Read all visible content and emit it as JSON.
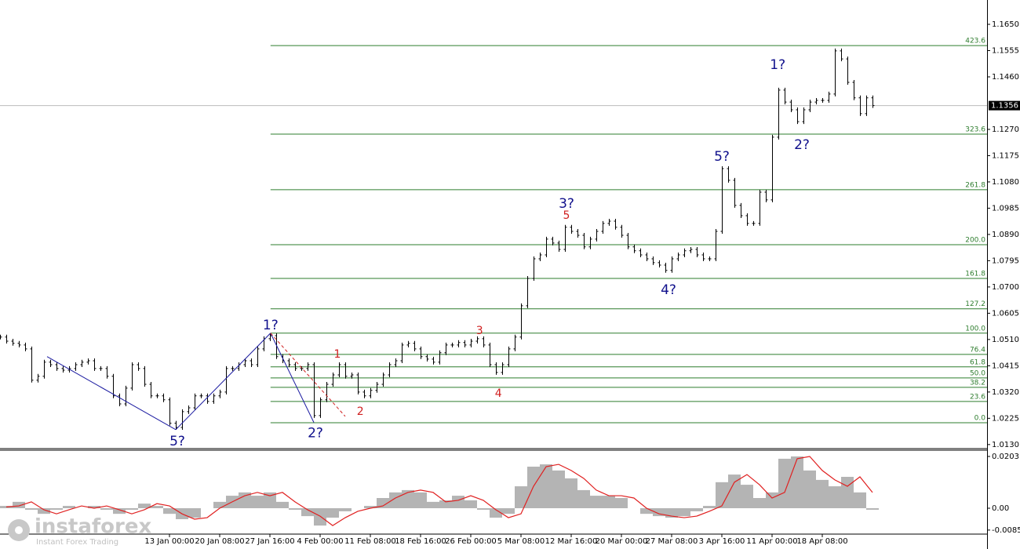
{
  "chart_data": [
    {
      "type": "ohlc",
      "values": [
        1.0519,
        1.0504,
        1.0496,
        1.049,
        1.0476,
        1.0363,
        1.0377,
        1.0428,
        1.0419,
        1.0405,
        1.0399,
        1.0405,
        1.0419,
        1.0428,
        1.0433,
        1.0405,
        1.0405,
        1.0377,
        1.0306,
        1.0277,
        1.0334,
        1.0419,
        1.0405,
        1.0348,
        1.0306,
        1.0306,
        1.0292,
        1.0207,
        1.0192,
        1.0249,
        1.0263,
        1.0306,
        1.0306,
        1.0286,
        1.0306,
        1.032,
        1.0405,
        1.0405,
        1.0419,
        1.0433,
        1.0419,
        1.0476,
        1.0513,
        1.0524,
        1.0448,
        1.0433,
        1.0419,
        1.0405,
        1.0405,
        1.0419,
        1.0235,
        1.0292,
        1.0348,
        1.0382,
        1.0419,
        1.0377,
        1.0382,
        1.032,
        1.0306,
        1.0326,
        1.0348,
        1.0382,
        1.0419,
        1.0433,
        1.049,
        1.0496,
        1.0476,
        1.0448,
        1.0439,
        1.0428,
        1.0462,
        1.049,
        1.049,
        1.0499,
        1.049,
        1.0504,
        1.0513,
        1.049,
        1.0419,
        1.0391,
        1.0419,
        1.0476,
        1.0519,
        1.0632,
        1.0731,
        1.0802,
        1.0816,
        1.0873,
        1.0859,
        1.0836,
        1.0916,
        1.0901,
        1.0887,
        1.0845,
        1.0873,
        1.0901,
        1.093,
        1.0938,
        1.0916,
        1.0887,
        1.0845,
        1.0831,
        1.0816,
        1.0802,
        1.0788,
        1.0779,
        1.076,
        1.0802,
        1.0816,
        1.0831,
        1.0836,
        1.0816,
        1.0802,
        1.0802,
        1.0901,
        1.1128,
        1.1086,
        1.0995,
        1.0958,
        1.093,
        1.093,
        1.1043,
        1.1015,
        1.1242,
        1.1412,
        1.1369,
        1.1341,
        1.1298,
        1.1341,
        1.1369,
        1.1375,
        1.1375,
        1.1398,
        1.1554,
        1.1525,
        1.144,
        1.1384,
        1.1327,
        1.1384,
        1.1356
      ],
      "color": "#000000",
      "xlim": [
        0,
        157.25
      ],
      "xticks": [
        {
          "value": 27,
          "label": "13 Jan 00:00"
        },
        {
          "value": 35,
          "label": "20 Jan 08:00"
        },
        {
          "value": 43,
          "label": "27 Jan 16:00"
        },
        {
          "value": 51,
          "label": "4 Feb 00:00"
        },
        {
          "value": 59,
          "label": "11 Feb 08:00"
        },
        {
          "value": 67,
          "label": "18 Feb 16:00"
        },
        {
          "value": 75,
          "label": "26 Feb 00:00"
        },
        {
          "value": 83,
          "label": "5 Mar 08:00"
        },
        {
          "value": 91,
          "label": "12 Mar 16:00"
        },
        {
          "value": 99,
          "label": "20 Mar 00:00"
        },
        {
          "value": 107,
          "label": "27 Mar 08:00"
        },
        {
          "value": 115,
          "label": "3 Apr 16:00"
        },
        {
          "value": 123,
          "label": "11 Apr 00:00"
        },
        {
          "value": 131,
          "label": "18 Apr 08:00"
        }
      ],
      "ylim": [
        1.0121,
        1.1738
      ],
      "yticks": [
        {
          "value": 1.165,
          "label": "1.1650"
        },
        1.1555,
        {
          "value": 1.146,
          "label": "1.1460"
        },
        {
          "value": 1.127,
          "label": "1.1270"
        },
        1.1175,
        {
          "value": 1.108,
          "label": "1.1080"
        },
        1.0985,
        {
          "value": 1.089,
          "label": "1.0890"
        },
        1.0795,
        {
          "value": 1.07,
          "label": "1.0700"
        },
        1.0605,
        {
          "value": 1.051,
          "label": "1.0510"
        },
        1.0415,
        {
          "value": 1.032,
          "label": "1.0320"
        },
        1.0225,
        {
          "value": 1.013,
          "label": "1.0130"
        }
      ],
      "last_price": 1.1356,
      "fib_color": "#2e7d2e",
      "fib_start": 43.1,
      "fib_levels": [
        {
          "label": "423.6",
          "price": 1.1573
        },
        {
          "label": "323.6",
          "price": 1.1253
        },
        {
          "label": "261.8",
          "price": 1.1052
        },
        {
          "label": "200.0",
          "price": 1.0853
        },
        {
          "label": "161.8",
          "price": 1.0731
        },
        {
          "label": "127.2",
          "price": 1.0621
        },
        {
          "label": "100.0",
          "price": 1.0533
        },
        {
          "label": "76.4",
          "price": 1.0456
        },
        {
          "label": "61.8",
          "price": 1.0411
        },
        {
          "label": "50.0",
          "price": 1.0371
        },
        {
          "label": "38.2",
          "price": 1.0337
        },
        {
          "label": "23.6",
          "price": 1.0286
        },
        {
          "label": "0.0",
          "price": 1.0209
        }
      ],
      "wave_lines": [
        {
          "x": [
            7.5,
            28
          ],
          "y": [
            1.0448,
            1.0184
          ],
          "color": "#1a1aa0",
          "dashed": false
        },
        {
          "x": [
            28,
            43.1
          ],
          "y": [
            1.0184,
            1.0533
          ],
          "color": "#1a1aa0",
          "dashed": false
        },
        {
          "x": [
            43.1,
            50
          ],
          "y": [
            1.0533,
            1.021
          ],
          "color": "#1a1aa0",
          "dashed": false
        },
        {
          "x": [
            43.1,
            55
          ],
          "y": [
            1.0533,
            1.0232
          ],
          "color": "#d02020",
          "dashed": true
        }
      ],
      "annotations": [
        {
          "text": "1?",
          "x": 43.1,
          "y": 1.0561,
          "color": "#10108c"
        },
        {
          "text": "5?",
          "x": 28.25,
          "y": 1.0141,
          "color": "#10108c"
        },
        {
          "text": "2?",
          "x": 50.25,
          "y": 1.017,
          "color": "#10108c"
        },
        {
          "text": "1",
          "x": 53.75,
          "y": 1.0456,
          "color": "#d02020"
        },
        {
          "text": "2",
          "x": 57.4,
          "y": 1.0249,
          "color": "#d02020"
        },
        {
          "text": "3",
          "x": 76.4,
          "y": 1.0541,
          "color": "#d02020"
        },
        {
          "text": "4",
          "x": 79.4,
          "y": 1.0314,
          "color": "#d02020"
        },
        {
          "text": "3?",
          "x": 90.25,
          "y": 1.1001,
          "color": "#10108c"
        },
        {
          "text": "5",
          "x": 90.25,
          "y": 1.0958,
          "color": "#d02020"
        },
        {
          "text": "4?",
          "x": 106.5,
          "y": 1.0689,
          "color": "#10108c"
        },
        {
          "text": "5?",
          "x": 115,
          "y": 1.1171,
          "color": "#10108c"
        },
        {
          "text": "1?",
          "x": 123.9,
          "y": 1.1503,
          "color": "#10108c"
        },
        {
          "text": "2?",
          "x": 127.75,
          "y": 1.1213,
          "color": "#10108c"
        }
      ]
    },
    {
      "type": "oscillator",
      "xlim": [
        0,
        78.625
      ],
      "ylim": [
        -0.00984,
        0.02245
      ],
      "yticks": [
        0.0203,
        {
          "value": 0,
          "label": "0.00"
        },
        -0.00857
      ],
      "series": [
        {
          "color": "#b4b4b4",
          "style": "histogram",
          "values": [
            0.0009,
            0.0025,
            -0.0006,
            -0.0022,
            -0.0006,
            0.0009,
            0,
            0.0009,
            -0.0006,
            -0.0022,
            -0.0006,
            0.0018,
            0.0009,
            -0.0022,
            -0.0043,
            -0.0037,
            0,
            0.0025,
            0.0049,
            0.0062,
            0.0049,
            0.0062,
            0.0025,
            -0.0006,
            -0.0031,
            -0.0068,
            -0.0037,
            -0.0012,
            0,
            0.0009,
            0.004,
            0.0062,
            0.0071,
            0.0062,
            0.0025,
            0.0031,
            0.0049,
            0.0031,
            -0.0006,
            -0.0037,
            -0.0022,
            0.0086,
            0.0163,
            0.0172,
            0.0148,
            0.0117,
            0.0071,
            0.0049,
            0.0049,
            0.004,
            0,
            -0.0022,
            -0.0031,
            -0.0037,
            -0.0031,
            -0.0012,
            0.0009,
            0.0102,
            0.0132,
            0.0092,
            0.004,
            0.0062,
            0.0194,
            0.0203,
            0.0148,
            0.0111,
            0.0086,
            0.0123,
            0.0062,
            -0.0006
          ]
        },
        {
          "color": "#e02020",
          "style": "line",
          "values": [
            0.0005,
            0.0009,
            0.0025,
            -0.0006,
            -0.0022,
            -0.0006,
            0.0009,
            0,
            0.0009,
            -0.0006,
            -0.0022,
            -0.0006,
            0.0018,
            0.0009,
            -0.0022,
            -0.0043,
            -0.0037,
            0,
            0.0025,
            0.0049,
            0.0062,
            0.0049,
            0.0062,
            0.0025,
            -0.0006,
            -0.0031,
            -0.0068,
            -0.0037,
            -0.0012,
            0,
            0.0009,
            0.004,
            0.0062,
            0.0071,
            0.0062,
            0.0025,
            0.0031,
            0.0049,
            0.0031,
            -0.0006,
            -0.0037,
            -0.0022,
            0.0086,
            0.0163,
            0.0172,
            0.0148,
            0.0117,
            0.0071,
            0.0049,
            0.0049,
            0.004,
            0,
            -0.0022,
            -0.0031,
            -0.0037,
            -0.0031,
            -0.0012,
            0.0009,
            0.0102,
            0.0132,
            0.0092,
            0.004,
            0.0062,
            0.0194,
            0.0203,
            0.0148,
            0.0111,
            0.0086,
            0.0123,
            0.0062
          ]
        }
      ]
    }
  ],
  "watermark": {
    "brand": "instaforex",
    "tagline": "Instant Forex Trading"
  }
}
